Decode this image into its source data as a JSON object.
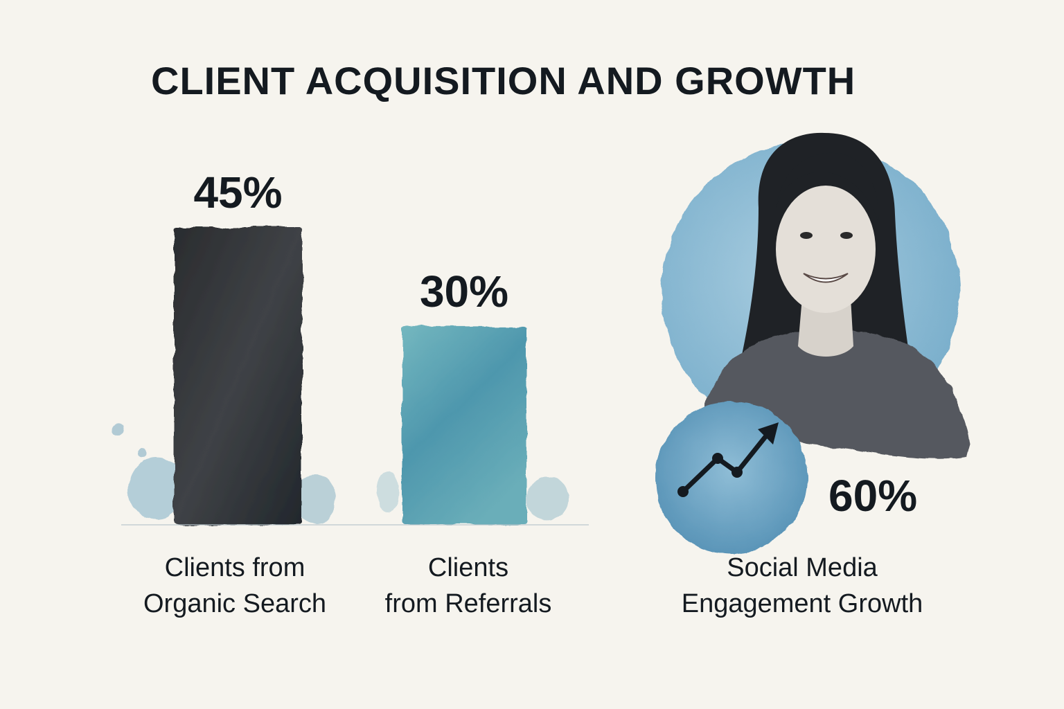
{
  "chart_data": {
    "type": "bar",
    "title": "CLIENT ACQUISITION AND GROWTH",
    "unit": "%",
    "categories": [
      [
        "Clients from",
        "Organic Search"
      ],
      [
        "Clients",
        "from Referrals"
      ],
      [
        "Social Media",
        "Engagement Growth"
      ]
    ],
    "values": [
      45,
      30,
      60
    ],
    "value_labels": [
      "45%",
      "30%",
      "60%"
    ],
    "ylim": [
      0,
      100
    ],
    "grid": false,
    "colors": [
      "#2a2d30",
      "#5fa3b3",
      "#6fa9c9"
    ],
    "icons": [
      "watercolor-bar",
      "watercolor-bar",
      "portrait-woman-with-trend-arrow-icon"
    ]
  }
}
